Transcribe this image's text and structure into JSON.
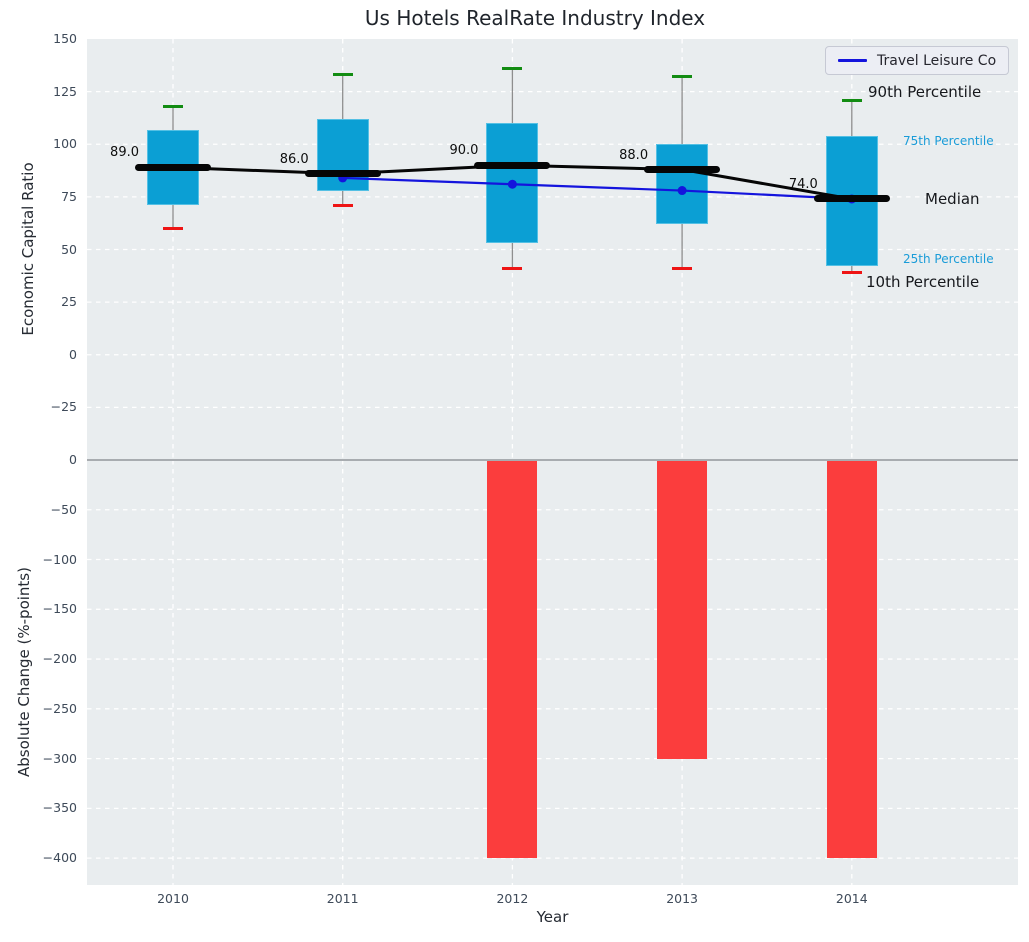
{
  "title": "Us Hotels RealRate Industry Index",
  "legend": {
    "label": "Travel Leisure Co"
  },
  "annotations": {
    "p90": {
      "text": "90th Percentile",
      "color": "#16181c"
    },
    "p75": {
      "text": "75th Percentile",
      "color": "#1a9cd8"
    },
    "median": {
      "text": "Median",
      "color": "#16181c"
    },
    "p25": {
      "text": "25th Percentile",
      "color": "#1a9cd8"
    },
    "p10": {
      "text": "10th Percentile",
      "color": "#16181c"
    }
  },
  "chart_data": [
    {
      "type": "box",
      "title": "Us Hotels RealRate Industry Index",
      "ylabel": "Economic Capital Ratio",
      "ylim": [
        -50,
        150
      ],
      "yticks": [
        150,
        125,
        100,
        75,
        50,
        25,
        0,
        -25
      ],
      "grid": true,
      "legend_position": "upper right",
      "categories": [
        "2010",
        "2011",
        "2012",
        "2013",
        "2014"
      ],
      "boxes": [
        {
          "year": "2010",
          "p10": 60,
          "p25": 71,
          "median": 89,
          "p75": 107,
          "p90": 118,
          "label": "89.0"
        },
        {
          "year": "2011",
          "p10": 71,
          "p25": 78,
          "median": 86,
          "p75": 112,
          "p90": 133,
          "label": "86.0"
        },
        {
          "year": "2012",
          "p10": 41,
          "p25": 53,
          "median": 90,
          "p75": 110,
          "p90": 136,
          "label": "90.0"
        },
        {
          "year": "2013",
          "p10": 41,
          "p25": 62,
          "median": 88,
          "p75": 100,
          "p90": 132,
          "label": "88.0"
        },
        {
          "year": "2014",
          "p10": 39,
          "p25": 42,
          "median": 74,
          "p75": 104,
          "p90": 121,
          "label": "74.0"
        }
      ],
      "median_line_series": {
        "name": "Median",
        "values": [
          89,
          86,
          90,
          88,
          74
        ]
      },
      "overlay_series": {
        "name": "Travel Leisure Co",
        "points": [
          {
            "year": "2011",
            "value": 84
          },
          {
            "year": "2012",
            "value": 81
          },
          {
            "year": "2013",
            "value": 78
          },
          {
            "year": "2014",
            "value": 74
          }
        ]
      },
      "colors": {
        "box_fill": "#0b9fd4",
        "box_edge": "#54c0e4",
        "whisker": "#8e8e8e",
        "cap_high": "#128c12",
        "cap_low": "#ee1414",
        "median": "#060606",
        "overlay_line": "#1414dd"
      }
    },
    {
      "type": "bar",
      "ylabel": "Absolute Change (%-points)",
      "xlabel": "Year",
      "ylim": [
        -427,
        0
      ],
      "yticks": [
        0,
        -50,
        -100,
        -150,
        -200,
        -250,
        -300,
        -350,
        -400
      ],
      "grid": true,
      "categories": [
        "2010",
        "2011",
        "2012",
        "2013",
        "2014"
      ],
      "values": [
        null,
        null,
        -400,
        -300,
        -400
      ],
      "bar_color": "#fb3d3d",
      "zero_line_color": "#a8acb0"
    }
  ]
}
